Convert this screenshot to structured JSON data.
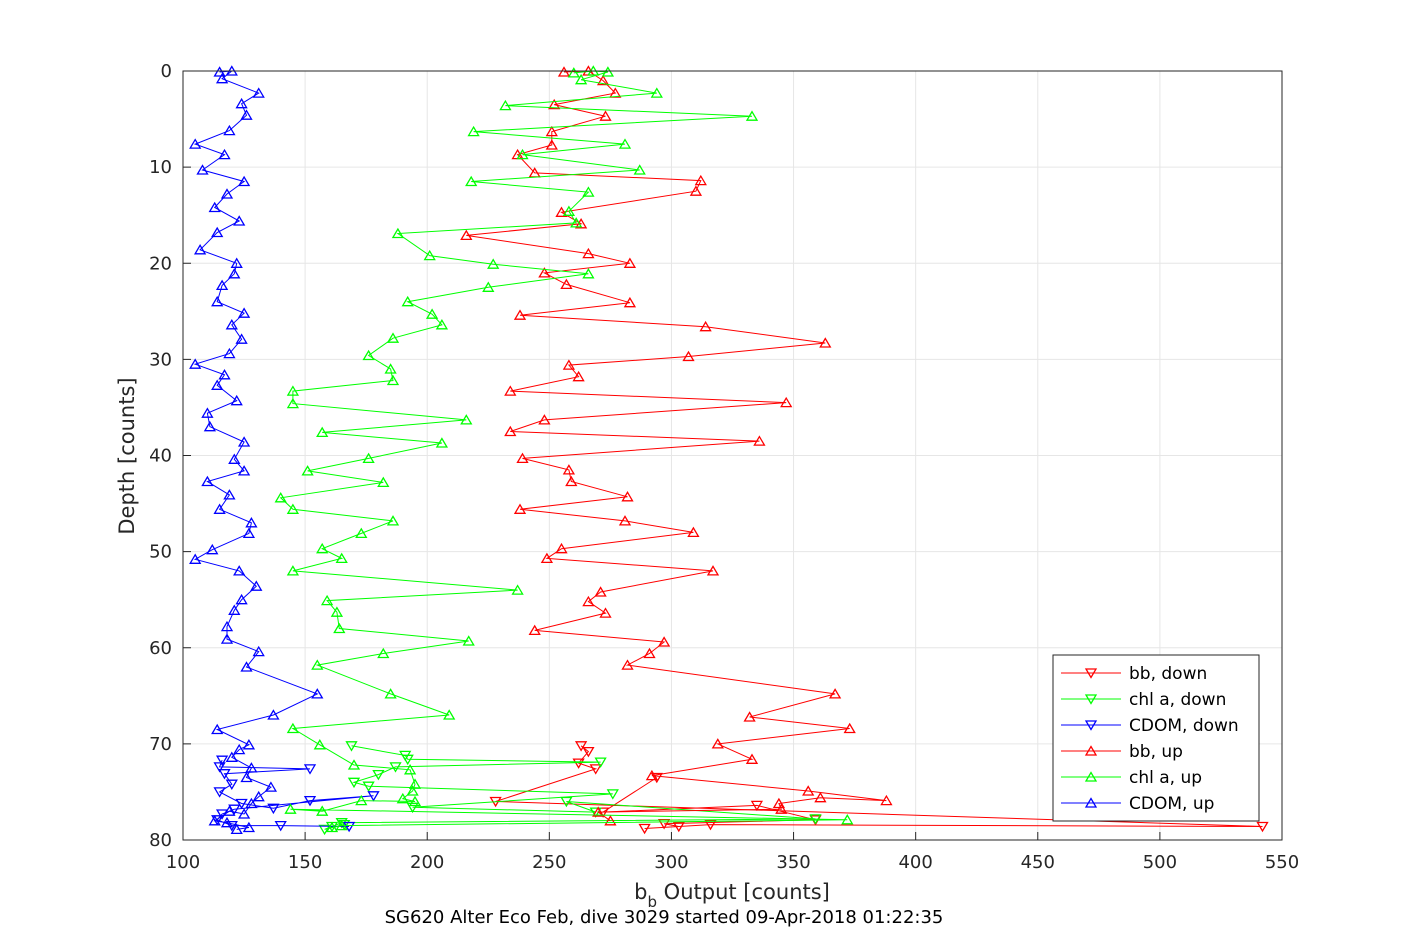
{
  "chart_data": {
    "type": "line",
    "title": "",
    "xlabel_main": "b",
    "xlabel_sub": "b",
    "xlabel_rest": " Output [counts]",
    "ylabel": "Depth [counts]",
    "caption": "SG620 Alter Eco Feb, dive 3029 started 09-Apr-2018 01:22:35",
    "xlim": [
      100,
      550
    ],
    "ylim": [
      0,
      80
    ],
    "y_reversed": true,
    "grid": true,
    "legend_position": "bottom-right",
    "x_ticks": [
      "100",
      "150",
      "200",
      "250",
      "300",
      "350",
      "400",
      "450",
      "500",
      "550"
    ],
    "y_ticks": [
      "0",
      "10",
      "20",
      "30",
      "40",
      "50",
      "60",
      "70",
      "80"
    ],
    "series": [
      {
        "name": "bb, down",
        "color": "#ff0000",
        "marker": "triangle-down",
        "points": [
          [
            294,
            73.5
          ],
          [
            272,
            77.1
          ],
          [
            335,
            76.4
          ],
          [
            359,
            77.9
          ],
          [
            297,
            78.3
          ],
          [
            303,
            78.6
          ],
          [
            289,
            78.8
          ],
          [
            316,
            78.4
          ],
          [
            542,
            78.6
          ],
          [
            228,
            76.0
          ],
          [
            269,
            72.6
          ],
          [
            262,
            72.0
          ],
          [
            266,
            70.8
          ],
          [
            263,
            70.2
          ]
        ]
      },
      {
        "name": "chl a, down",
        "color": "#00ff00",
        "marker": "triangle-down",
        "points": [
          [
            169,
            70.2
          ],
          [
            191,
            71.2
          ],
          [
            192,
            71.6
          ],
          [
            271,
            71.9
          ],
          [
            187,
            72.4
          ],
          [
            180,
            73.2
          ],
          [
            170,
            74.0
          ],
          [
            176,
            74.4
          ],
          [
            276,
            75.2
          ],
          [
            194,
            76.6
          ],
          [
            269,
            77.1
          ],
          [
            257,
            76.0
          ],
          [
            359,
            77.8
          ],
          [
            165,
            78.2
          ],
          [
            161,
            78.6
          ],
          [
            158,
            78.9
          ],
          [
            166,
            78.4
          ]
        ]
      },
      {
        "name": "CDOM, down",
        "color": "#0000ff",
        "marker": "triangle-down",
        "points": [
          [
            116,
            71.7
          ],
          [
            115,
            72.4
          ],
          [
            152,
            72.6
          ],
          [
            117,
            73.1
          ],
          [
            120,
            74.2
          ],
          [
            115,
            75.0
          ],
          [
            124,
            76.2
          ],
          [
            137,
            76.7
          ],
          [
            152,
            75.9
          ],
          [
            178,
            75.4
          ],
          [
            121,
            76.8
          ],
          [
            116,
            77.3
          ],
          [
            114,
            77.9
          ],
          [
            120,
            78.5
          ],
          [
            140,
            78.5
          ],
          [
            168,
            78.6
          ]
        ]
      },
      {
        "name": "bb, up",
        "color": "#ff0000",
        "marker": "triangle-up",
        "points": [
          [
            256,
            0.1
          ],
          [
            266,
            0
          ],
          [
            272,
            1.0
          ],
          [
            277,
            2.3
          ],
          [
            252,
            3.5
          ],
          [
            273,
            4.7
          ],
          [
            251,
            6.3
          ],
          [
            251,
            7.7
          ],
          [
            237,
            8.7
          ],
          [
            244,
            10.6
          ],
          [
            312,
            11.4
          ],
          [
            310,
            12.5
          ],
          [
            255,
            14.7
          ],
          [
            263,
            15.9
          ],
          [
            216,
            17.1
          ],
          [
            266,
            19.0
          ],
          [
            283,
            20.0
          ],
          [
            248,
            21.0
          ],
          [
            257,
            22.2
          ],
          [
            283,
            24.1
          ],
          [
            238,
            25.4
          ],
          [
            314,
            26.6
          ],
          [
            363,
            28.3
          ],
          [
            307,
            29.7
          ],
          [
            258,
            30.6
          ],
          [
            262,
            31.8
          ],
          [
            234,
            33.3
          ],
          [
            347,
            34.5
          ],
          [
            248,
            36.3
          ],
          [
            234,
            37.5
          ],
          [
            336,
            38.5
          ],
          [
            239,
            40.3
          ],
          [
            258,
            41.5
          ],
          [
            259,
            42.7
          ],
          [
            282,
            44.3
          ],
          [
            238,
            45.6
          ],
          [
            281,
            46.8
          ],
          [
            309,
            48.0
          ],
          [
            255,
            49.7
          ],
          [
            249,
            50.7
          ],
          [
            317,
            52.0
          ],
          [
            271,
            54.2
          ],
          [
            266,
            55.2
          ],
          [
            273,
            56.4
          ],
          [
            244,
            58.2
          ],
          [
            297,
            59.4
          ],
          [
            291,
            60.6
          ],
          [
            282,
            61.8
          ],
          [
            367,
            64.8
          ],
          [
            332,
            67.2
          ],
          [
            373,
            68.4
          ],
          [
            319,
            70.0
          ],
          [
            333,
            71.6
          ],
          [
            292,
            73.3
          ],
          [
            356,
            74.9
          ],
          [
            388,
            75.9
          ],
          [
            361,
            75.6
          ],
          [
            344,
            76.2
          ],
          [
            345,
            76.8
          ],
          [
            270,
            77.1
          ],
          [
            275,
            78.0
          ]
        ]
      },
      {
        "name": "chl a, up",
        "color": "#00ff00",
        "marker": "triangle-up",
        "points": [
          [
            260,
            0.2
          ],
          [
            268,
            0
          ],
          [
            274,
            0.1
          ],
          [
            263,
            0.9
          ],
          [
            294,
            2.3
          ],
          [
            232,
            3.6
          ],
          [
            333,
            4.7
          ],
          [
            219,
            6.3
          ],
          [
            281,
            7.6
          ],
          [
            239,
            8.7
          ],
          [
            287,
            10.3
          ],
          [
            218,
            11.5
          ],
          [
            266,
            12.6
          ],
          [
            258,
            14.6
          ],
          [
            261,
            15.8
          ],
          [
            188,
            16.9
          ],
          [
            201,
            19.2
          ],
          [
            227,
            20.1
          ],
          [
            266,
            21.1
          ],
          [
            225,
            22.5
          ],
          [
            192,
            24.0
          ],
          [
            202,
            25.3
          ],
          [
            206,
            26.4
          ],
          [
            186,
            27.8
          ],
          [
            176,
            29.6
          ],
          [
            185,
            31.0
          ],
          [
            186,
            32.2
          ],
          [
            145,
            33.3
          ],
          [
            145,
            34.6
          ],
          [
            216,
            36.3
          ],
          [
            157,
            37.6
          ],
          [
            206,
            38.7
          ],
          [
            176,
            40.3
          ],
          [
            151,
            41.6
          ],
          [
            182,
            42.8
          ],
          [
            140,
            44.4
          ],
          [
            145,
            45.6
          ],
          [
            186,
            46.8
          ],
          [
            173,
            48.1
          ],
          [
            157,
            49.7
          ],
          [
            165,
            50.7
          ],
          [
            145,
            52.0
          ],
          [
            237,
            54.0
          ],
          [
            159,
            55.1
          ],
          [
            163,
            56.3
          ],
          [
            164,
            58.0
          ],
          [
            217,
            59.3
          ],
          [
            182,
            60.6
          ],
          [
            155,
            61.8
          ],
          [
            185,
            64.8
          ],
          [
            209,
            67.0
          ],
          [
            145,
            68.4
          ],
          [
            156,
            70.1
          ],
          [
            170,
            72.2
          ],
          [
            193,
            72.7
          ],
          [
            195,
            74.2
          ],
          [
            194,
            74.9
          ],
          [
            190,
            75.7
          ],
          [
            195,
            76.0
          ],
          [
            173,
            75.9
          ],
          [
            157,
            77.0
          ],
          [
            144,
            76.8
          ],
          [
            372,
            77.9
          ],
          [
            165,
            78.5
          ],
          [
            161,
            78.7
          ]
        ]
      },
      {
        "name": "CDOM, up",
        "color": "#0000ff",
        "marker": "triangle-up",
        "points": [
          [
            115,
            0.1
          ],
          [
            120,
            0
          ],
          [
            116,
            0.8
          ],
          [
            131,
            2.3
          ],
          [
            124,
            3.4
          ],
          [
            126,
            4.6
          ],
          [
            119,
            6.2
          ],
          [
            105,
            7.6
          ],
          [
            117,
            8.7
          ],
          [
            108,
            10.3
          ],
          [
            125,
            11.5
          ],
          [
            118,
            12.8
          ],
          [
            113,
            14.2
          ],
          [
            123,
            15.6
          ],
          [
            114,
            16.8
          ],
          [
            107,
            18.6
          ],
          [
            122,
            20.0
          ],
          [
            121,
            21.1
          ],
          [
            116,
            22.3
          ],
          [
            114,
            24.0
          ],
          [
            125,
            25.2
          ],
          [
            120,
            26.4
          ],
          [
            124,
            27.9
          ],
          [
            119,
            29.4
          ],
          [
            105,
            30.5
          ],
          [
            117,
            31.6
          ],
          [
            114,
            32.7
          ],
          [
            122,
            34.3
          ],
          [
            110,
            35.6
          ],
          [
            111,
            37.0
          ],
          [
            125,
            38.6
          ],
          [
            121,
            40.4
          ],
          [
            125,
            41.6
          ],
          [
            110,
            42.7
          ],
          [
            119,
            44.1
          ],
          [
            115,
            45.6
          ],
          [
            128,
            47.0
          ],
          [
            127,
            48.1
          ],
          [
            112,
            49.8
          ],
          [
            105,
            50.8
          ],
          [
            123,
            52.0
          ],
          [
            130,
            53.6
          ],
          [
            124,
            55.0
          ],
          [
            121,
            56.1
          ],
          [
            118,
            57.8
          ],
          [
            118,
            59.1
          ],
          [
            131,
            60.4
          ],
          [
            126,
            62.0
          ],
          [
            155,
            64.8
          ],
          [
            137,
            67.0
          ],
          [
            114,
            68.5
          ],
          [
            127,
            70.1
          ],
          [
            123,
            70.6
          ],
          [
            120,
            71.4
          ],
          [
            128,
            72.5
          ],
          [
            126,
            73.5
          ],
          [
            136,
            74.5
          ],
          [
            131,
            75.5
          ],
          [
            128,
            76.2
          ],
          [
            125,
            77.3
          ],
          [
            119,
            77.0
          ],
          [
            113,
            78.0
          ],
          [
            118,
            78.2
          ],
          [
            127,
            78.7
          ],
          [
            122,
            78.9
          ]
        ]
      }
    ]
  }
}
